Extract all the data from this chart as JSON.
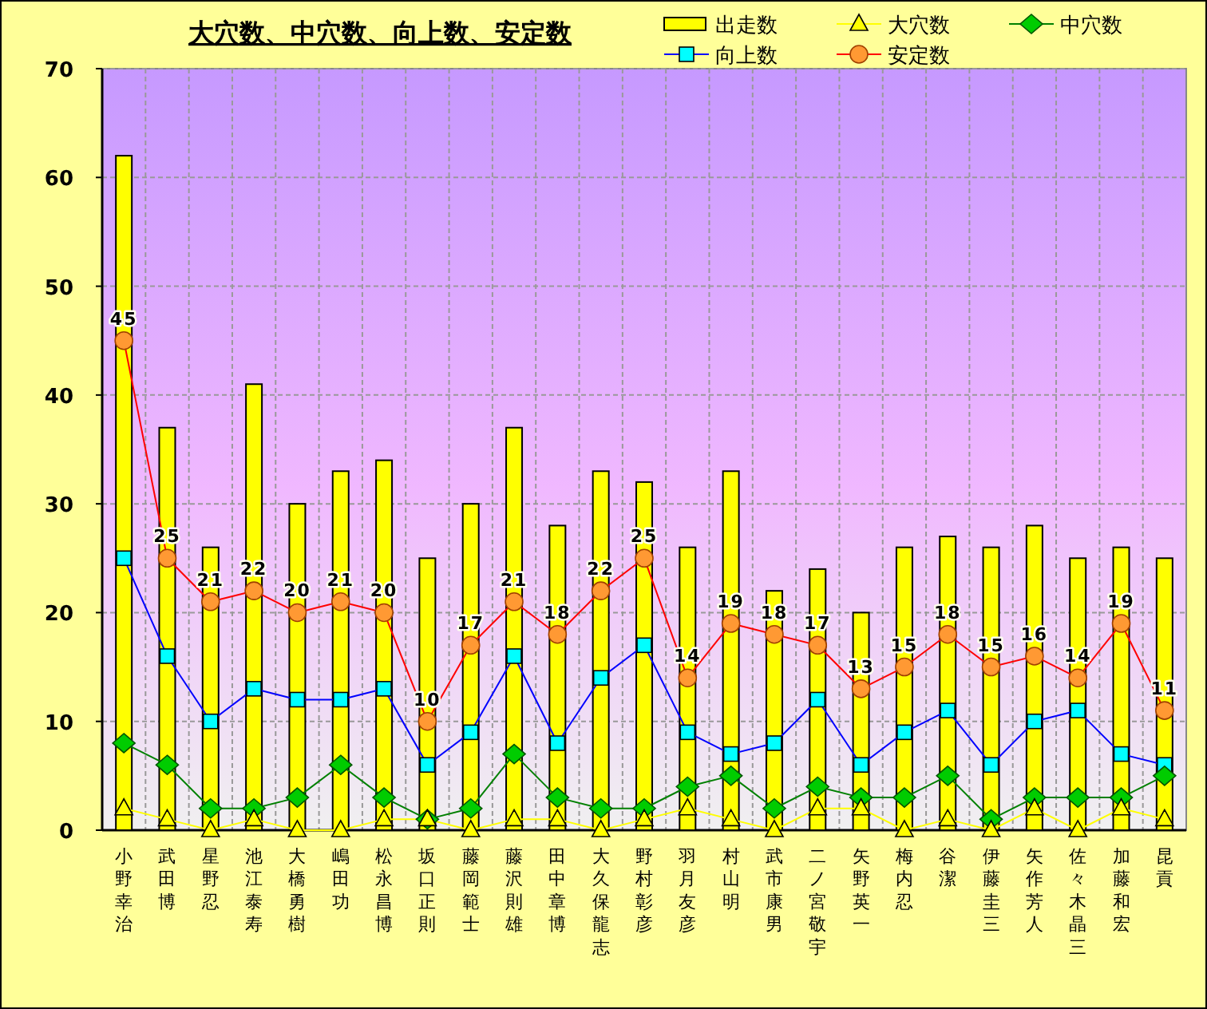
{
  "chart_data": {
    "type": "bar",
    "title": "大穴数、中穴数、向上数、安定数",
    "categories": [
      "小野幸治",
      "武田博",
      "星野忍",
      "池江泰寿",
      "大橋勇樹",
      "嶋田功",
      "松永昌博",
      "坂口正則",
      "藤岡範士",
      "藤沢則雄",
      "田中章博",
      "大久保龍志",
      "野村彰彦",
      "羽月友彦",
      "村山明",
      "武市康男",
      "二ノ宮敬宇",
      "矢野英一",
      "梅内忍",
      "谷潔",
      "伊藤圭三",
      "矢作芳人",
      "佐々木晶三",
      "加藤和宏",
      "昆貢"
    ],
    "series": [
      {
        "name": "出走数",
        "color": "#ffff00",
        "values": [
          62,
          37,
          26,
          41,
          30,
          33,
          34,
          25,
          30,
          37,
          28,
          33,
          32,
          26,
          33,
          22,
          24,
          20,
          26,
          27,
          26,
          28,
          25,
          26,
          25
        ]
      },
      {
        "name": "大穴数",
        "type": "line",
        "marker": "triangle",
        "color": "#ffff00",
        "values": [
          2,
          1,
          0,
          1,
          0,
          0,
          1,
          1,
          0,
          1,
          1,
          0,
          1,
          2,
          1,
          0,
          2,
          2,
          0,
          1,
          0,
          2,
          0,
          2,
          1
        ]
      },
      {
        "name": "中穴数",
        "type": "line",
        "marker": "diamond",
        "color": "#008000",
        "colors": [
          "#00cc00",
          "#00cc00",
          "#00cc00",
          "#00cc00",
          "#00cc00",
          "#00cc00",
          "#00cc00",
          "#00cc00",
          "#00cc00",
          "#00cc00",
          "#00cc00",
          "#00cc00",
          "#00cc00",
          "#00cc00",
          "#00cc00",
          "#00cc00",
          "#00cc00",
          "#00cc00",
          "#00cc00",
          "#00cc00",
          "#00cc00",
          "#00cc00",
          "#00cc00",
          "#00cc00",
          "#00cc00"
        ],
        "values": [
          8,
          6,
          2,
          2,
          3,
          6,
          3,
          1,
          2,
          7,
          3,
          2,
          2,
          4,
          5,
          2,
          4,
          3,
          3,
          5,
          1,
          3,
          3,
          3,
          5
        ]
      },
      {
        "name": "向上数",
        "type": "line",
        "marker": "square",
        "color": "#0000ff",
        "colors": [
          "#00ffff",
          "#00ffff",
          "#00ffff",
          "#00ffff",
          "#00ffff",
          "#00ffff",
          "#00ffff",
          "#00ffff",
          "#00ffff",
          "#00ffff",
          "#00ffff",
          "#00ffff",
          "#00ffff",
          "#00ffff",
          "#00ffff",
          "#00ffff",
          "#00ffff",
          "#00ffff",
          "#00ffff",
          "#00ffff",
          "#00ffff",
          "#00ffff",
          "#00ffff",
          "#00ffff",
          "#00ffff"
        ],
        "values": [
          25,
          16,
          10,
          13,
          12,
          12,
          13,
          6,
          9,
          16,
          8,
          14,
          17,
          9,
          7,
          8,
          12,
          6,
          9,
          11,
          6,
          10,
          11,
          7,
          6
        ]
      },
      {
        "name": "安定数",
        "type": "line",
        "marker": "circle",
        "color": "#ff0000",
        "colors": [
          "#ff9933",
          "#ff9933",
          "#ff9933",
          "#ff9933",
          "#ff9933",
          "#ff9933",
          "#ff9933",
          "#ff9933",
          "#ff9933",
          "#ff9933",
          "#ff9933",
          "#ff9933",
          "#ff9933",
          "#ff9933",
          "#ff9933",
          "#ff9933",
          "#ff9933",
          "#ff9933",
          "#ff9933",
          "#ff9933",
          "#ff9933",
          "#ff9933",
          "#ff9933",
          "#ff9933",
          "#ff9933"
        ],
        "values": [
          45,
          25,
          21,
          22,
          20,
          21,
          20,
          10,
          17,
          21,
          18,
          22,
          25,
          14,
          19,
          18,
          17,
          13,
          15,
          18,
          15,
          16,
          14,
          19,
          11
        ],
        "value_labels": [
          "45",
          "25",
          "21",
          "22",
          "20",
          "21",
          "20",
          "10",
          "17",
          "21",
          "18",
          "22",
          "25",
          "14",
          "19",
          "18",
          "17",
          "13",
          "15",
          "18",
          "15",
          "16",
          "14",
          "19",
          "11"
        ]
      }
    ],
    "ylim": [
      0,
      70
    ],
    "yticks": [
      0,
      10,
      20,
      30,
      40,
      50,
      60,
      70
    ],
    "grid": true,
    "legend": "top right"
  }
}
